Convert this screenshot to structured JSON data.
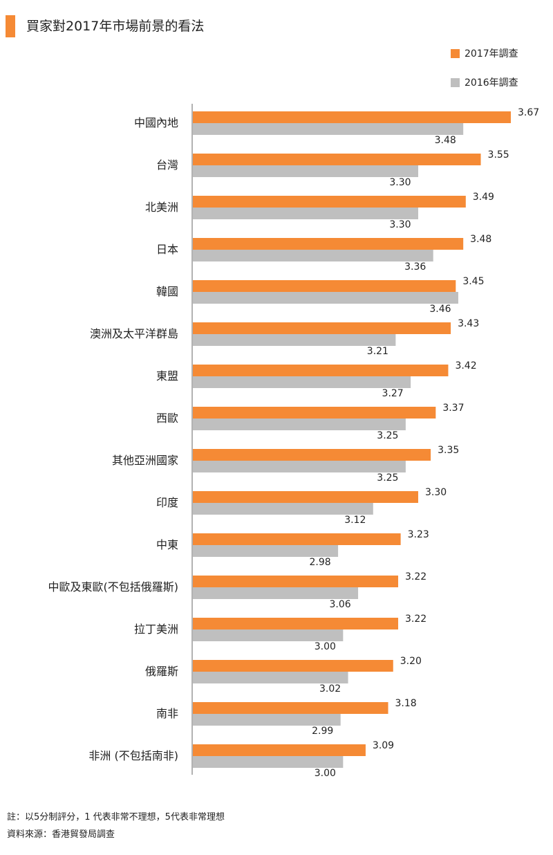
{
  "title": "買家對2017年市場前景的看法",
  "colors": {
    "accent": "#f58a35",
    "series_2017": "#f58a35",
    "series_2016": "#bfbfbf",
    "axis": "#666666"
  },
  "legend": [
    {
      "label": "2017年調查"
    },
    {
      "label": "2016年調查"
    }
  ],
  "chart_data": {
    "type": "bar",
    "orientation": "horizontal",
    "title": "買家對2017年市場前景的看法",
    "xlabel": "",
    "ylabel": "",
    "xlim": [
      2.4,
      3.7
    ],
    "grid": false,
    "categories": [
      "中國內地",
      "台灣",
      "北美洲",
      "日本",
      "韓國",
      "澳洲及太平洋群島",
      "東盟",
      "西歐",
      "其他亞洲國家",
      "印度",
      "中東",
      "中歐及東歐(不包括俄羅斯)",
      "拉丁美洲",
      "俄羅斯",
      "南非",
      "非洲 (不包括南非)"
    ],
    "series": [
      {
        "name": "2017年調查",
        "values": [
          3.67,
          3.55,
          3.49,
          3.48,
          3.45,
          3.43,
          3.42,
          3.37,
          3.35,
          3.3,
          3.23,
          3.22,
          3.22,
          3.2,
          3.18,
          3.09
        ],
        "labels": [
          "3.67",
          "3.55",
          "3.49",
          "3.48",
          "3.45",
          "3.43",
          "3.42",
          "3.37",
          "3.35",
          "3.30",
          "3.23",
          "3.22",
          "3.22",
          "3.20",
          "3.18",
          "3.09"
        ]
      },
      {
        "name": "2016年調查",
        "values": [
          3.48,
          3.3,
          3.3,
          3.36,
          3.46,
          3.21,
          3.27,
          3.25,
          3.25,
          3.12,
          2.98,
          3.06,
          3.0,
          3.02,
          2.99,
          3.0
        ],
        "labels": [
          "3.48",
          "3.30",
          "3.30",
          "3.36",
          "3.46",
          "3.21",
          "3.27",
          "3.25",
          "3.25",
          "3.12",
          "2.98",
          "3.06",
          "3.00",
          "3.02",
          "2.99",
          "3.00"
        ]
      }
    ]
  },
  "footnotes": {
    "note": "註：以5分制評分，1 代表非常不理想，5代表非常理想",
    "source": "資料來源：香港貿發局調查"
  }
}
